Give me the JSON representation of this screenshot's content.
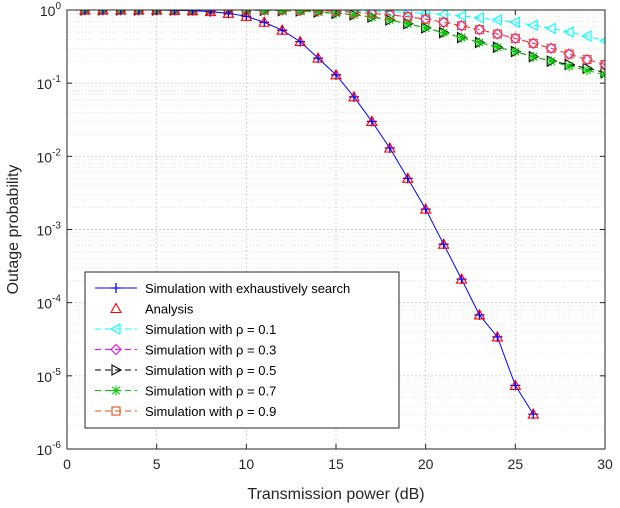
{
  "chart_data": {
    "type": "line",
    "title": "",
    "xlabel": "Transmission power (dB)",
    "ylabel": "Outage probability",
    "xlim": [
      0,
      30
    ],
    "ylim": [
      1e-06,
      1
    ],
    "yscale": "log",
    "grid": true,
    "minor_grid": true,
    "legend_position": "bottom-left",
    "x_ticks": [
      "0",
      "5",
      "10",
      "15",
      "20",
      "25",
      "30"
    ],
    "y_ticks": [
      {
        "base": "10",
        "exp": "0",
        "value": 1
      },
      {
        "base": "10",
        "exp": "-1",
        "value": 0.1
      },
      {
        "base": "10",
        "exp": "-2",
        "value": 0.01
      },
      {
        "base": "10",
        "exp": "-3",
        "value": 0.001
      },
      {
        "base": "10",
        "exp": "-4",
        "value": 0.0001
      },
      {
        "base": "10",
        "exp": "-5",
        "value": 1e-05
      },
      {
        "base": "10",
        "exp": "-6",
        "value": 1e-06
      }
    ],
    "series": [
      {
        "name": "Simulation with exhaustively search",
        "color": "#0000ff",
        "marker": "plus",
        "line": "solid",
        "x": [
          1,
          2,
          3,
          4,
          5,
          6,
          7,
          8,
          9,
          10,
          11,
          12,
          13,
          14,
          15,
          16,
          17,
          18,
          19,
          20,
          21,
          22,
          23,
          24,
          25,
          26
        ],
        "y": [
          1.0,
          1.0,
          1.0,
          1.0,
          1.0,
          0.99,
          0.98,
          0.95,
          0.9,
          0.82,
          0.68,
          0.53,
          0.37,
          0.22,
          0.13,
          0.065,
          0.03,
          0.013,
          0.005,
          0.0019,
          0.00063,
          0.00021,
          6.8e-05,
          3.4e-05,
          7.4e-06,
          3e-06
        ]
      },
      {
        "name": "Analysis",
        "color": "#ff0000",
        "marker": "triangle-up",
        "line": "none",
        "x": [
          1,
          2,
          3,
          4,
          5,
          6,
          7,
          8,
          9,
          10,
          11,
          12,
          13,
          14,
          15,
          16,
          17,
          18,
          19,
          20,
          21,
          22,
          23,
          24,
          25,
          26
        ],
        "y": [
          1.0,
          1.0,
          1.0,
          1.0,
          1.0,
          0.99,
          0.98,
          0.95,
          0.9,
          0.82,
          0.68,
          0.53,
          0.37,
          0.22,
          0.13,
          0.065,
          0.03,
          0.013,
          0.005,
          0.0019,
          0.00063,
          0.00021,
          6.8e-05,
          3.4e-05,
          7.4e-06,
          3e-06
        ]
      },
      {
        "name": "Simulation with ρ = 0.1",
        "color": "#00ffff",
        "marker": "triangle-left",
        "line": "dashed",
        "x": [
          1,
          2,
          3,
          4,
          5,
          6,
          7,
          8,
          9,
          10,
          11,
          12,
          13,
          14,
          15,
          16,
          17,
          18,
          19,
          20,
          21,
          22,
          23,
          24,
          25,
          26,
          27,
          28,
          29,
          30
        ],
        "y": [
          1.0,
          1.0,
          1.0,
          1.0,
          1.0,
          1.0,
          1.0,
          1.0,
          1.0,
          1.0,
          1.0,
          1.0,
          1.0,
          0.99,
          0.98,
          0.97,
          0.96,
          0.95,
          0.93,
          0.9,
          0.87,
          0.83,
          0.78,
          0.73,
          0.68,
          0.62,
          0.56,
          0.5,
          0.44,
          0.38
        ]
      },
      {
        "name": "Simulation with ρ = 0.3",
        "color": "#ff00ff",
        "marker": "diamond",
        "line": "dashed",
        "x": [
          1,
          2,
          3,
          4,
          5,
          6,
          7,
          8,
          9,
          10,
          11,
          12,
          13,
          14,
          15,
          16,
          17,
          18,
          19,
          20,
          21,
          22,
          23,
          24,
          25,
          26,
          27,
          28,
          29,
          30
        ],
        "y": [
          1.0,
          1.0,
          1.0,
          1.0,
          1.0,
          1.0,
          1.0,
          1.0,
          1.0,
          1.0,
          1.0,
          1.0,
          0.99,
          0.98,
          0.96,
          0.93,
          0.9,
          0.86,
          0.81,
          0.75,
          0.68,
          0.61,
          0.54,
          0.47,
          0.41,
          0.35,
          0.3,
          0.25,
          0.21,
          0.18
        ]
      },
      {
        "name": "Simulation with ρ = 0.5",
        "color": "#000000",
        "marker": "triangle-right",
        "line": "dashed",
        "x": [
          1,
          2,
          3,
          4,
          5,
          6,
          7,
          8,
          9,
          10,
          11,
          12,
          13,
          14,
          15,
          16,
          17,
          18,
          19,
          20,
          21,
          22,
          23,
          24,
          25,
          26,
          27,
          28,
          29,
          30
        ],
        "y": [
          1.0,
          1.0,
          1.0,
          1.0,
          1.0,
          1.0,
          1.0,
          1.0,
          1.0,
          1.0,
          0.99,
          0.98,
          0.97,
          0.94,
          0.9,
          0.86,
          0.8,
          0.73,
          0.65,
          0.57,
          0.49,
          0.42,
          0.36,
          0.31,
          0.27,
          0.23,
          0.2,
          0.18,
          0.16,
          0.14
        ]
      },
      {
        "name": "Simulation with ρ = 0.7",
        "color": "#00cc00",
        "marker": "asterisk",
        "line": "dashed",
        "x": [
          1,
          2,
          3,
          4,
          5,
          6,
          7,
          8,
          9,
          10,
          11,
          12,
          13,
          14,
          15,
          16,
          17,
          18,
          19,
          20,
          21,
          22,
          23,
          24,
          25,
          26,
          27,
          28,
          29,
          30
        ],
        "y": [
          1.0,
          1.0,
          1.0,
          1.0,
          1.0,
          1.0,
          1.0,
          1.0,
          1.0,
          1.0,
          0.99,
          0.98,
          0.97,
          0.94,
          0.9,
          0.86,
          0.8,
          0.73,
          0.65,
          0.57,
          0.49,
          0.42,
          0.36,
          0.31,
          0.27,
          0.23,
          0.2,
          0.17,
          0.15,
          0.13
        ]
      },
      {
        "name": "Simulation with ρ = 0.9",
        "color": "#d95319",
        "marker": "square",
        "line": "dashed",
        "x": [
          1,
          2,
          3,
          4,
          5,
          6,
          7,
          8,
          9,
          10,
          11,
          12,
          13,
          14,
          15,
          16,
          17,
          18,
          19,
          20,
          21,
          22,
          23,
          24,
          25,
          26,
          27,
          28,
          29,
          30
        ],
        "y": [
          1.0,
          1.0,
          1.0,
          1.0,
          1.0,
          1.0,
          1.0,
          1.0,
          1.0,
          1.0,
          1.0,
          1.0,
          0.99,
          0.98,
          0.96,
          0.93,
          0.9,
          0.86,
          0.81,
          0.75,
          0.68,
          0.61,
          0.54,
          0.47,
          0.41,
          0.35,
          0.3,
          0.25,
          0.21,
          0.18
        ]
      }
    ]
  }
}
